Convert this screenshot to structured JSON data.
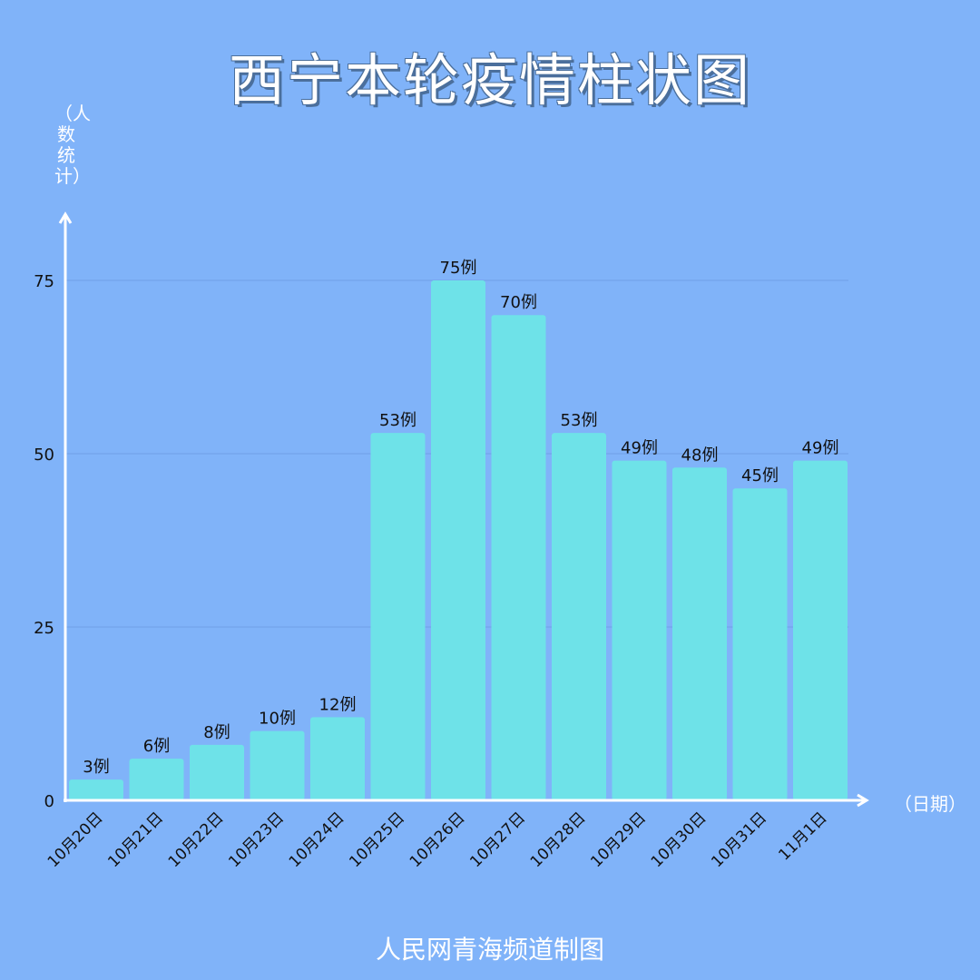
{
  "title": "西宁本轮疫情柱状图",
  "footer": "人民网青海频道制图",
  "colors": {
    "background": "#80b3f9",
    "bar": "#6ee2e8",
    "axis": "#ffffff",
    "grid": "#6f9fe6",
    "text": "#111111"
  },
  "chart_data": {
    "type": "bar",
    "title": "西宁本轮疫情柱状图",
    "xlabel": "（日期）",
    "ylabel": "（人数统计）",
    "categories": [
      "10月20日",
      "10月21日",
      "10月22日",
      "10月23日",
      "10月24日",
      "10月25日",
      "10月26日",
      "10月27日",
      "10月28日",
      "10月29日",
      "10月30日",
      "10月31日",
      "11月1日"
    ],
    "values": [
      3,
      6,
      8,
      10,
      12,
      53,
      75,
      70,
      53,
      49,
      48,
      45,
      49
    ],
    "data_labels": [
      "3例",
      "6例",
      "8例",
      "10例",
      "12例",
      "53例",
      "75例",
      "70例",
      "53例",
      "49例",
      "48例",
      "45例",
      "49例"
    ],
    "yticks": [
      0,
      25,
      50,
      75
    ],
    "ylim": [
      0,
      75
    ],
    "grid": true
  }
}
